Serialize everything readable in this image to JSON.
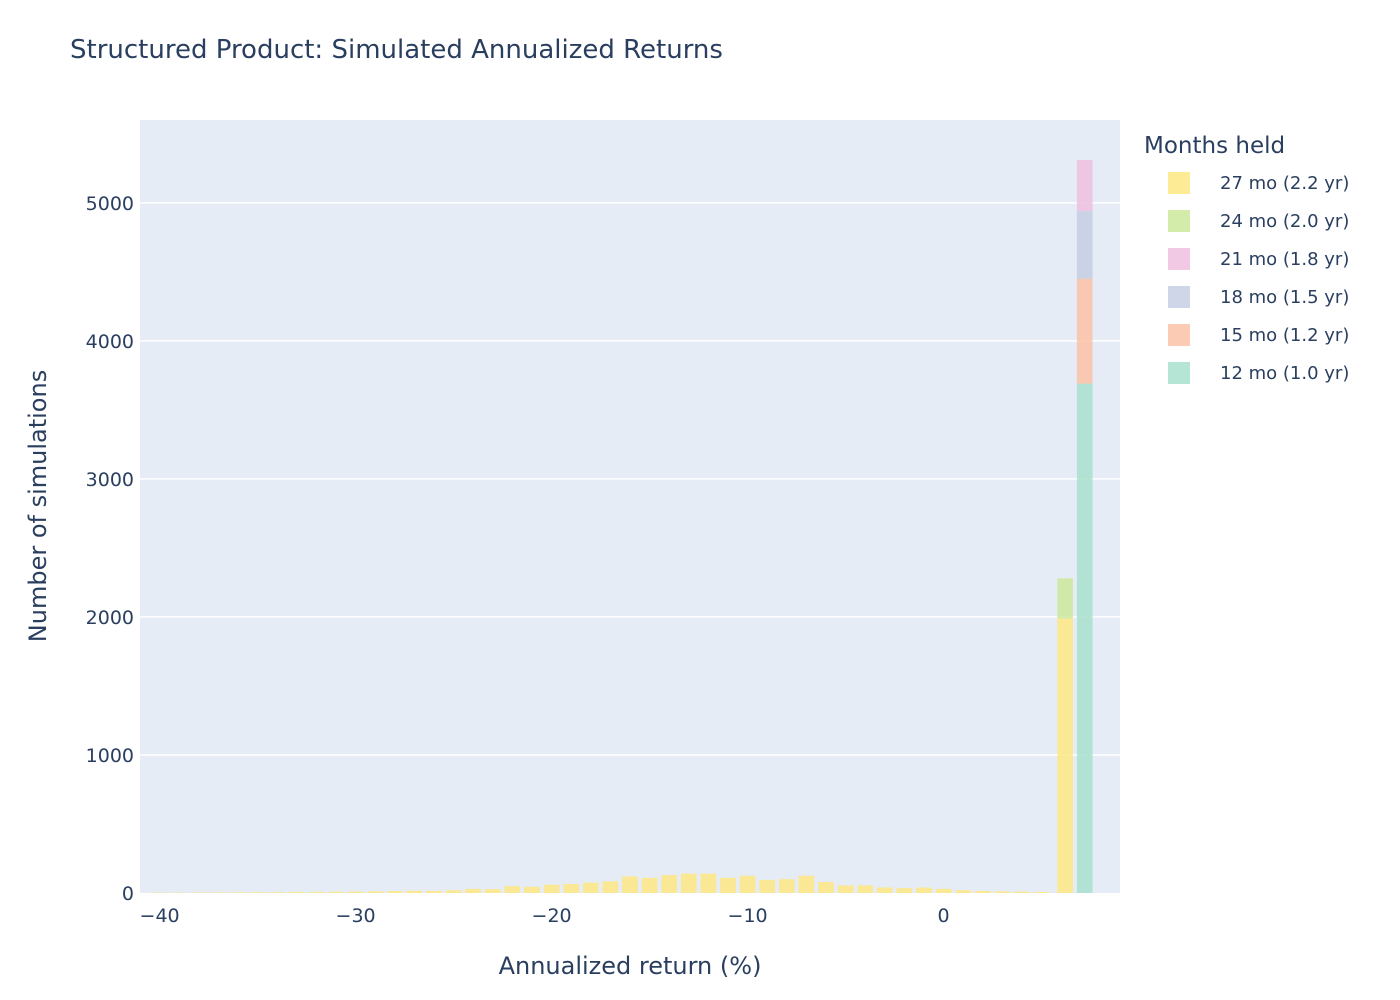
{
  "chart_data": {
    "type": "bar",
    "mode": "stacked",
    "title": "Structured Product: Simulated Annualized Returns",
    "xlabel": "Annualized return (%)",
    "ylabel": "Number of simulations",
    "xlim": [
      -41,
      9
    ],
    "ylim": [
      0,
      5600
    ],
    "x_ticks": [
      -40,
      -30,
      -20,
      -10,
      0
    ],
    "x_tick_labels": [
      "−40",
      "−30",
      "−20",
      "−10",
      "0"
    ],
    "y_ticks": [
      0,
      1000,
      2000,
      3000,
      4000,
      5000
    ],
    "y_tick_labels": [
      "0",
      "1000",
      "2000",
      "3000",
      "4000",
      "5000"
    ],
    "grid": true,
    "background": "#e5ecf6",
    "bin_width": 1.0,
    "legend": {
      "title": "Months held",
      "placement": "right",
      "entries": [
        "27 mo (2.2 yr)",
        "24 mo (2.0 yr)",
        "21 mo (1.8 yr)",
        "18 mo (1.5 yr)",
        "15 mo (1.2 yr)",
        "12 mo (1.0 yr)"
      ]
    },
    "series": [
      {
        "name": "27 mo (2.2 yr)",
        "color": "#fee783",
        "x": [
          -40,
          -39,
          -38,
          -37,
          -36,
          -35,
          -34,
          -33,
          -32,
          -31,
          -30,
          -29,
          -28,
          -27,
          -26,
          -25,
          -24,
          -23,
          -22,
          -21,
          -20,
          -19,
          -18,
          -17,
          -16,
          -15,
          -14,
          -13,
          -12,
          -11,
          -10,
          -9,
          -8,
          -7,
          -6,
          -5,
          -4,
          -3,
          -2,
          -1,
          0,
          1,
          2,
          3,
          4,
          5,
          6.2
        ],
        "values": [
          3,
          3,
          4,
          4,
          5,
          6,
          6,
          8,
          8,
          9,
          10,
          12,
          14,
          16,
          15,
          20,
          30,
          28,
          50,
          45,
          60,
          65,
          75,
          85,
          120,
          110,
          130,
          140,
          140,
          110,
          125,
          95,
          100,
          125,
          80,
          55,
          55,
          40,
          35,
          40,
          30,
          20,
          15,
          12,
          10,
          8,
          1990
        ]
      },
      {
        "name": "24 mo (2.0 yr)",
        "color": "#cde99b",
        "x": [
          6.2
        ],
        "values": [
          290
        ]
      },
      {
        "name": "12 mo (1.0 yr)",
        "color": "#a8e0cc",
        "x": [
          7.2
        ],
        "values": [
          3690
        ]
      },
      {
        "name": "15 mo (1.2 yr)",
        "color": "#fcc2a7",
        "x": [
          7.2
        ],
        "values": [
          760
        ]
      },
      {
        "name": "18 mo (1.5 yr)",
        "color": "#c6cfe3",
        "x": [
          7.2
        ],
        "values": [
          490
        ]
      },
      {
        "name": "21 mo (1.8 yr)",
        "color": "#efbfdf",
        "x": [
          7.2
        ],
        "values": [
          370
        ]
      }
    ]
  }
}
